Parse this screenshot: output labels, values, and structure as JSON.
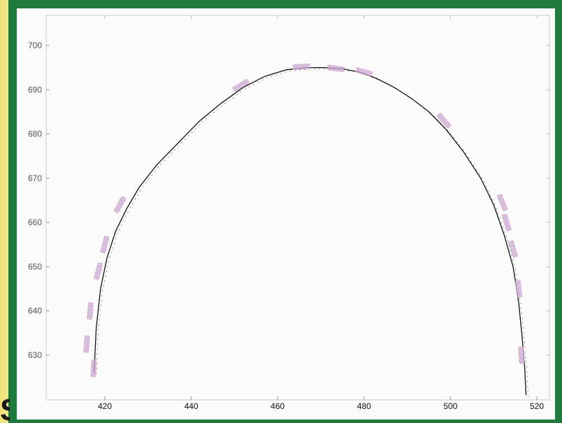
{
  "chart_data": {
    "type": "scatter",
    "title": "",
    "xlabel": "",
    "ylabel": "",
    "xlim": [
      410,
      523
    ],
    "ylim": [
      620,
      705
    ],
    "x_ticks": [
      "420",
      "440",
      "460",
      "480",
      "500",
      "520"
    ],
    "y_ticks": [
      "700",
      "690",
      "680",
      "670",
      "660",
      "650",
      "640",
      "630"
    ],
    "grid": false,
    "colors": {
      "fitted_curve": "#111111",
      "measured_marker": "#c9a9d8",
      "measured_marker_edge": "#e0a0b8",
      "frame": "#1f7a3d",
      "background": "#e9dc6c"
    },
    "series": [
      {
        "style": "solid-line",
        "x": [
          417.5,
          418,
          419,
          420.5,
          422.5,
          425,
          428,
          432,
          437,
          442,
          447,
          452,
          457,
          462,
          467,
          471,
          475,
          479,
          483,
          487,
          491,
          495,
          499,
          503,
          507,
          510,
          512.5,
          514.5,
          515.8,
          516.6,
          517.2,
          517.5
        ],
        "y": [
          626,
          636,
          645,
          652,
          658,
          663,
          668,
          673,
          678,
          683,
          687,
          690.5,
          693,
          694.5,
          695,
          695,
          694.7,
          694,
          692.5,
          690.5,
          688,
          685,
          681,
          676,
          670,
          664,
          657,
          650,
          642,
          634,
          627,
          621
        ]
      },
      {
        "style": "dashed-markers",
        "x": [
          415.8,
          416.6,
          417.4,
          418.5,
          420.0,
          423.5,
          451.5,
          465.5,
          473.5,
          480.0,
          498.5,
          512.0,
          513.0,
          514.5,
          515.8,
          516.4
        ],
        "y": [
          632.5,
          640.0,
          627.0,
          649.0,
          655.0,
          664.0,
          691.0,
          695.2,
          694.8,
          694.0,
          683.0,
          664.5,
          660.0,
          654.0,
          645.0,
          630.0
        ]
      }
    ]
  }
}
